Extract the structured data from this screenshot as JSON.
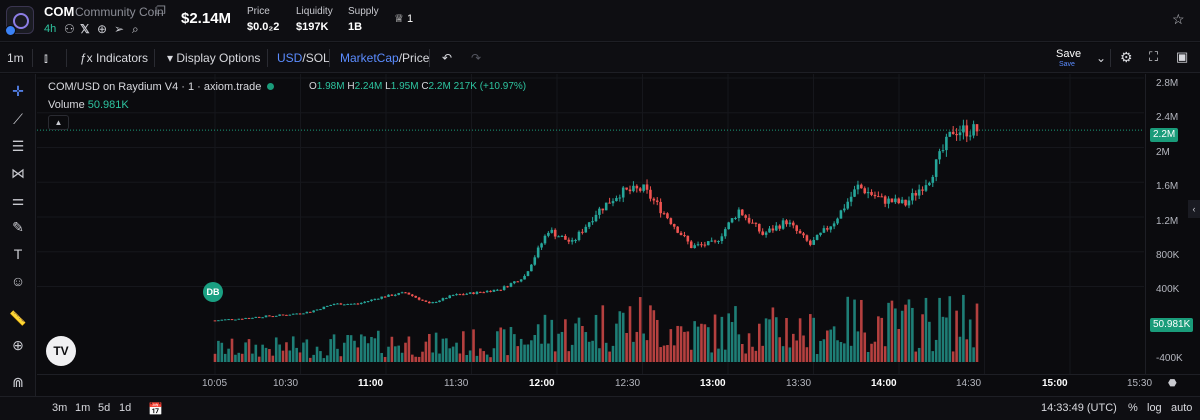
{
  "token": {
    "symbol": "COM",
    "name": "Community Coin",
    "age": "4h"
  },
  "header": {
    "market_cap": "$2.14M",
    "price_label": "Price",
    "price_value": "$0.0₂2",
    "liquidity_label": "Liquidity",
    "liquidity_value": "$197K",
    "supply_label": "Supply",
    "supply_value": "1B",
    "holders_count": "1"
  },
  "toolbar": {
    "interval": "1m",
    "indicators": "Indicators",
    "display_options": "Display Options",
    "currency_usd": "USD",
    "currency_sep": "/",
    "currency_sol": "SOL",
    "mode_mcap": "MarketCap",
    "mode_sep": "/",
    "mode_price": "Price",
    "save": "Save",
    "save_sub": "Save"
  },
  "legend": {
    "title": "COM/USD on Raydium V4 · 1 · axiom.trade",
    "o_label": "O",
    "o_value": "1.98M",
    "h_label": "H",
    "h_value": "2.24M",
    "l_label": "L",
    "l_value": "1.95M",
    "c_label": "C",
    "c_value": "2.2M",
    "change": "217K (+10.97%)",
    "volume_label": "Volume",
    "volume_value": "50.981K"
  },
  "markers": {
    "db": "DB",
    "tv_logo": "TV"
  },
  "y_axis": {
    "labels": [
      "2.8M",
      "2.4M",
      "2M",
      "1.6M",
      "1.2M",
      "800K",
      "400K",
      "-400K"
    ],
    "current_price": "2.2M",
    "current_volume": "50.981K"
  },
  "x_axis": {
    "labels": [
      "10:05",
      "10:30",
      "11:00",
      "11:30",
      "12:00",
      "12:30",
      "13:00",
      "13:30",
      "14:00",
      "14:30",
      "15:00",
      "15:30"
    ],
    "bold": [
      "11:00",
      "12:00",
      "13:00",
      "14:00",
      "15:00"
    ]
  },
  "bottom": {
    "ranges": [
      "3m",
      "1m",
      "5d",
      "1d"
    ],
    "clock": "14:33:49 (UTC)",
    "percent": "%",
    "log": "log",
    "auto": "auto"
  },
  "icons": {
    "token_logo": "token-logo-icon",
    "copy": "copy-icon",
    "person": "person-icon",
    "x": "x-icon",
    "globe": "globe-icon",
    "telegram": "telegram-icon",
    "search": "search-icon",
    "crown": "crown-icon",
    "star": "star-icon"
  },
  "colors": {
    "up": "#26a69a",
    "down": "#ef5350",
    "accent": "#5b8cff",
    "bg": "#0b0b0e"
  },
  "chart_data": {
    "type": "candlestick",
    "x": [
      "10:05",
      "10:15",
      "10:25",
      "10:35",
      "10:45",
      "10:55",
      "11:05",
      "11:15",
      "11:25",
      "11:35",
      "11:45",
      "11:55",
      "12:05",
      "12:15",
      "12:25",
      "12:30",
      "12:35",
      "12:45",
      "12:55",
      "13:00",
      "13:05",
      "13:15",
      "13:25",
      "13:35",
      "13:45",
      "13:55",
      "14:05",
      "14:10",
      "14:15",
      "14:20",
      "14:25",
      "14:30",
      "14:33"
    ],
    "close": [
      10000,
      30000,
      55000,
      75000,
      110000,
      200000,
      200000,
      280000,
      330000,
      200000,
      300000,
      330000,
      370000,
      520000,
      1050000,
      900000,
      1250000,
      1480000,
      1520000,
      1200000,
      860000,
      900000,
      1280000,
      1000000,
      1150000,
      880000,
      1150000,
      1550000,
      1400000,
      1350000,
      1650000,
      2200000,
      2200000
    ],
    "y_range": [
      -400000,
      2800000
    ],
    "ylabel": "",
    "volume": "50.981K"
  }
}
